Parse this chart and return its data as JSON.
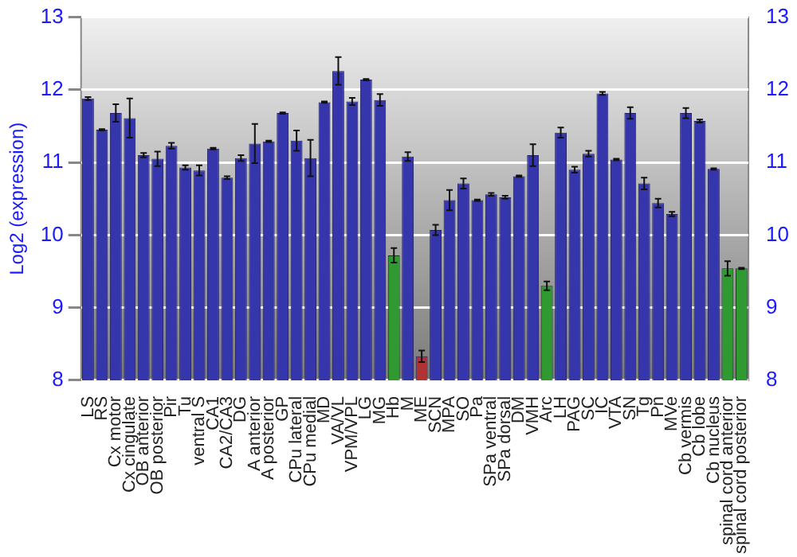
{
  "chart_data": {
    "type": "bar",
    "ylabel": "Log2 (expression)",
    "categories": [
      "LS",
      "RS",
      "Cx motor",
      "Cx cingulate",
      "OB anterior",
      "OB posterior",
      "Pir",
      "Tu",
      "ventral S",
      "CA1",
      "CA2/CA3",
      "DG",
      "A anterior",
      "A posterior",
      "GP",
      "CPu lateral",
      "CPu medial",
      "MD",
      "VA/VL",
      "VPM/VPL",
      "LG",
      "MG",
      "Hb",
      "M",
      "ME",
      "SCN",
      "MPA",
      "SO",
      "Pa",
      "SPa ventral",
      "SPa dorsal",
      "DM",
      "VMH",
      "Arc",
      "LH",
      "PAG",
      "SC",
      "IC",
      "VTA",
      "SN",
      "Tg",
      "Pn",
      "MVe",
      "Cb vermis",
      "Cb lobe",
      "Cb nucleus",
      "spinal cord anterior",
      "spinal cord posterior"
    ],
    "values": [
      11.88,
      11.45,
      11.68,
      11.61,
      11.1,
      11.05,
      11.23,
      10.93,
      10.89,
      11.19,
      10.79,
      11.06,
      11.26,
      11.29,
      11.68,
      11.3,
      11.06,
      11.83,
      12.26,
      11.84,
      12.14,
      11.86,
      9.72,
      11.08,
      8.33,
      10.07,
      10.48,
      10.71,
      10.48,
      10.56,
      10.52,
      10.81,
      11.1,
      9.3,
      11.41,
      10.9,
      11.12,
      11.95,
      11.04,
      11.68,
      10.71,
      10.44,
      10.29,
      11.68,
      11.57,
      10.91,
      9.54,
      9.54
    ],
    "errors": [
      0.02,
      0.01,
      0.12,
      0.27,
      0.03,
      0.1,
      0.04,
      0.03,
      0.07,
      0.01,
      0.02,
      0.04,
      0.27,
      0.01,
      0.01,
      0.14,
      0.25,
      0.01,
      0.19,
      0.05,
      0.01,
      0.08,
      0.1,
      0.06,
      0.08,
      0.07,
      0.14,
      0.07,
      0.01,
      0.02,
      0.02,
      0.01,
      0.15,
      0.06,
      0.07,
      0.04,
      0.04,
      0.02,
      0.01,
      0.08,
      0.08,
      0.06,
      0.03,
      0.07,
      0.02,
      0.01,
      0.1,
      0.01
    ],
    "colors": [
      "#3636ac",
      "#3636ac",
      "#3636ac",
      "#3636ac",
      "#3636ac",
      "#3636ac",
      "#3636ac",
      "#3636ac",
      "#3636ac",
      "#3636ac",
      "#3636ac",
      "#3636ac",
      "#3636ac",
      "#3636ac",
      "#3636ac",
      "#3636ac",
      "#3636ac",
      "#3636ac",
      "#3636ac",
      "#3636ac",
      "#3636ac",
      "#3636ac",
      "#2f9a2f",
      "#3636ac",
      "#b03232",
      "#3636ac",
      "#3636ac",
      "#3636ac",
      "#3636ac",
      "#3636ac",
      "#3636ac",
      "#3636ac",
      "#3636ac",
      "#2f9a2f",
      "#3636ac",
      "#3636ac",
      "#3636ac",
      "#3636ac",
      "#3636ac",
      "#3636ac",
      "#3636ac",
      "#3636ac",
      "#3636ac",
      "#3636ac",
      "#3636ac",
      "#3636ac",
      "#2f9a2f",
      "#2f9a2f"
    ],
    "ylim": [
      8,
      13
    ],
    "yticks": [
      8,
      9,
      10,
      11,
      12,
      13
    ],
    "y2lim": [
      8,
      13
    ],
    "y2ticks": [
      8,
      9,
      10,
      11,
      12,
      13
    ],
    "grid": "y",
    "legend": false
  }
}
